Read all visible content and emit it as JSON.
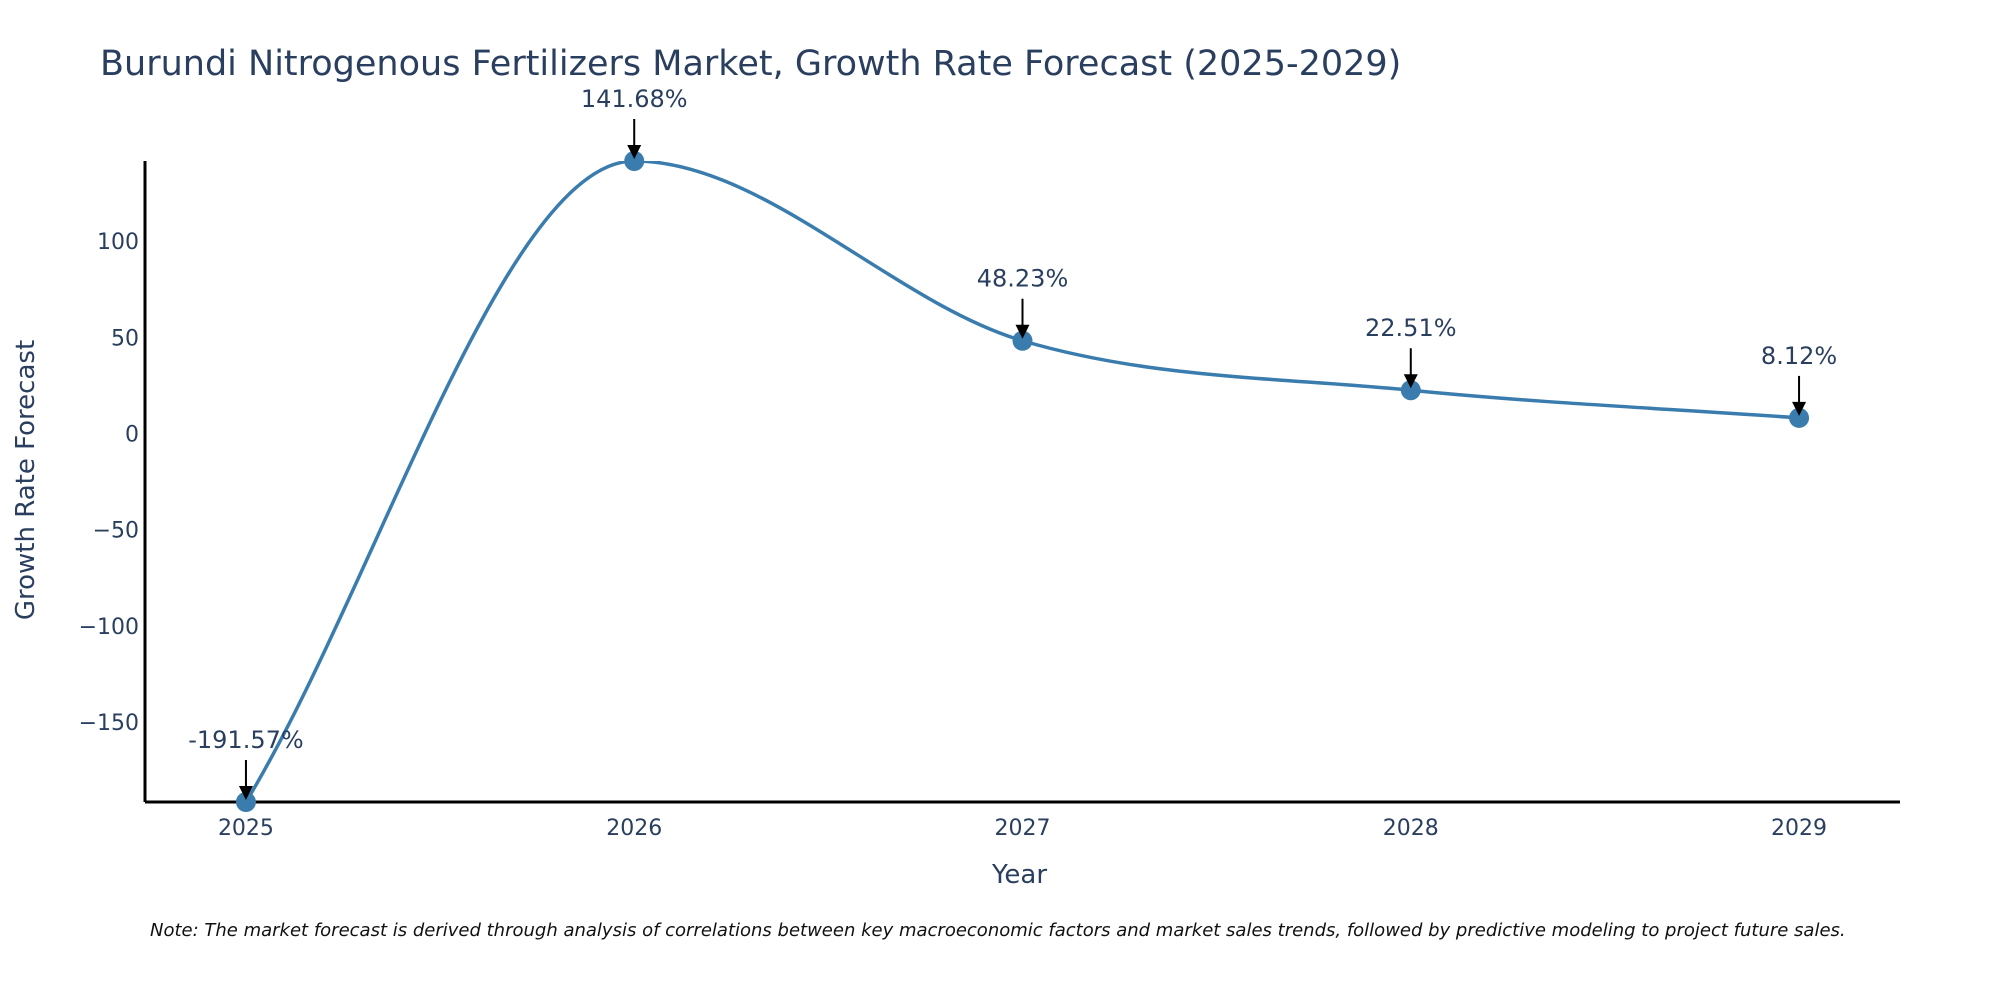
{
  "colors": {
    "line": "#3a7cad",
    "marker": "#3a7cad",
    "text": "#2a3f5f",
    "axis": "#000000",
    "arrow": "#000000"
  },
  "chart_data": {
    "type": "line",
    "title": "Burundi Nitrogenous Fertilizers Market, Growth Rate Forecast (2025-2029)",
    "xlabel": "Year",
    "ylabel": "Growth Rate Forecast",
    "x": [
      2025,
      2026,
      2027,
      2028,
      2029
    ],
    "xtick_labels": [
      "2025",
      "2026",
      "2027",
      "2028",
      "2029"
    ],
    "ytick_values": [
      -150,
      -100,
      -50,
      0,
      50,
      100
    ],
    "ytick_labels": [
      "−150",
      "−100",
      "−50",
      "0",
      "50",
      "100"
    ],
    "xlim": [
      2024.74,
      2029.26
    ],
    "ylim": [
      -191.57,
      141.68
    ],
    "grid": false,
    "series": [
      {
        "name": "Growth Rate Forecast",
        "values": [
          -191.57,
          141.68,
          48.23,
          22.51,
          8.12
        ]
      }
    ],
    "annotations": [
      "-191.57%",
      "141.68%",
      "48.23%",
      "22.51%",
      "8.12%"
    ]
  },
  "note": "Note: The market forecast is derived through analysis of correlations between key macroeconomic factors and market sales trends, followed by predictive modeling to project future sales."
}
